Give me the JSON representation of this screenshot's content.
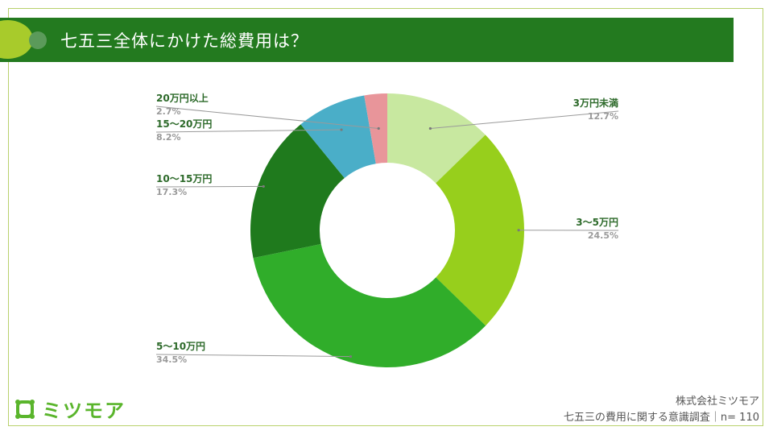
{
  "header": {
    "title": "七五三全体にかけた総費用は？"
  },
  "chart_data": {
    "type": "pie",
    "style": "donut",
    "title": "七五三全体にかけた総費用は？",
    "start": "top, clockwise",
    "categories": [
      "3万円未満",
      "3〜5万円",
      "5〜10万円",
      "10〜15万円",
      "15〜20万円",
      "20万円以上"
    ],
    "values": [
      12.7,
      24.5,
      34.5,
      17.3,
      8.2,
      2.7
    ],
    "value_labels": [
      "12.7%",
      "24.5%",
      "34.5%",
      "17.3%",
      "8.2%",
      "2.7%"
    ],
    "colors": [
      "#c8e8a0",
      "#97cf1c",
      "#30ad2a",
      "#1f7a1d",
      "#4aaec8",
      "#e8959a"
    ]
  },
  "footer": {
    "company": "株式会社ミツモア",
    "survey": "七五三の費用に関する意識調査｜n= 110"
  },
  "logo": {
    "text": "ミツモア",
    "icon": "mitsumore-logo-icon"
  }
}
